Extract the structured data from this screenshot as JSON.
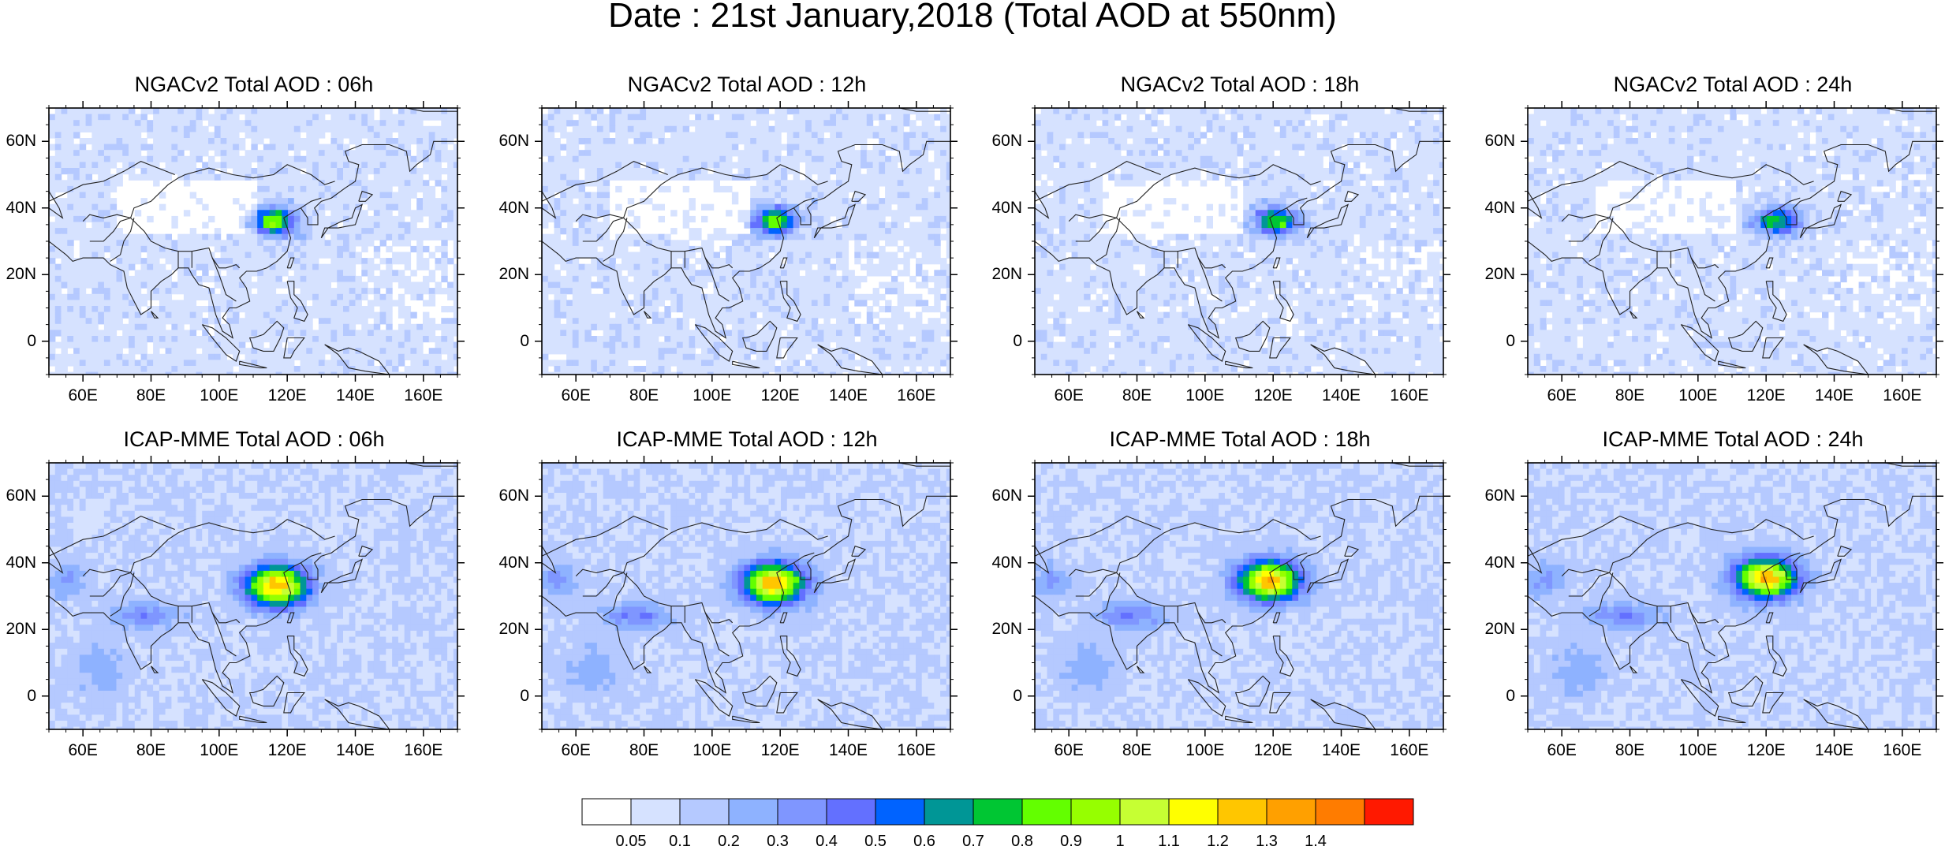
{
  "title": "Date : 21st January,2018 (Total AOD at 550nm)",
  "panels": [
    {
      "title": "NGACv2 Total AOD : 06h"
    },
    {
      "title": "NGACv2 Total AOD : 12h"
    },
    {
      "title": "NGACv2 Total AOD : 18h"
    },
    {
      "title": "NGACv2 Total AOD : 24h"
    },
    {
      "title": "ICAP-MME Total AOD : 06h"
    },
    {
      "title": "ICAP-MME Total AOD : 12h"
    },
    {
      "title": "ICAP-MME Total AOD : 18h"
    },
    {
      "title": "ICAP-MME Total AOD : 24h"
    }
  ],
  "axes": {
    "lat_ticks": [
      "60N",
      "40N",
      "20N",
      "0"
    ],
    "lon_ticks": [
      "60E",
      "80E",
      "100E",
      "120E",
      "140E",
      "160E"
    ],
    "lat_range": [
      -10,
      70
    ],
    "lon_range": [
      50,
      170
    ]
  },
  "colorbar": {
    "labels": [
      "0.05",
      "0.1",
      "0.2",
      "0.3",
      "0.4",
      "0.5",
      "0.6",
      "0.7",
      "0.8",
      "0.9",
      "1",
      "1.1",
      "1.2",
      "1.3",
      "1.4"
    ],
    "colors": [
      "#ffffff",
      "#d6e2ff",
      "#b5c9ff",
      "#8eb2ff",
      "#7f96ff",
      "#6370ff",
      "#0063ff",
      "#009696",
      "#00c633",
      "#63ff00",
      "#96ff00",
      "#c6ff33",
      "#ffff00",
      "#ffc600",
      "#ffa000",
      "#ff7c00",
      "#ff1900"
    ]
  }
}
